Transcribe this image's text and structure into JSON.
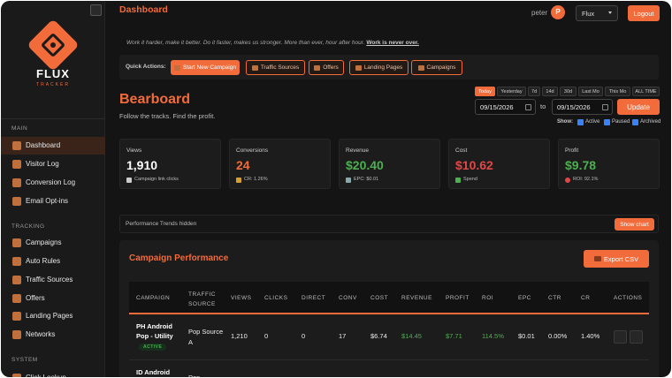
{
  "sidebar": {
    "brand": "FLUX",
    "brand_sub": "TRACKER",
    "sections": [
      {
        "title": "MAIN",
        "items": [
          "Dashboard",
          "Visitor Log",
          "Conversion Log",
          "Email Opt-ins"
        ]
      },
      {
        "title": "TRACKING",
        "items": [
          "Campaigns",
          "Auto Rules",
          "Traffic Sources",
          "Offers",
          "Landing Pages",
          "Networks"
        ]
      },
      {
        "title": "SYSTEM",
        "items": [
          "Click Lookup"
        ]
      }
    ]
  },
  "header": {
    "title": "Dashboard",
    "user": "peter",
    "avatar": "P",
    "workspace": "Flux",
    "logout": "Logout"
  },
  "motto": {
    "text": "Work it harder, make it better. Do it faster, makes us stronger. More than ever, hour after hour.",
    "emphasis": "Work is never over."
  },
  "quick_actions": {
    "label": "Quick Actions:",
    "buttons": [
      "Start New Campaign",
      "Traffic Sources",
      "Offers",
      "Landing Pages",
      "Campaigns"
    ]
  },
  "page": {
    "title": "Bearboard",
    "subtitle": "Follow the tracks. Find the profit."
  },
  "date_filter": {
    "ranges": [
      "Today",
      "Yesterday",
      "7d",
      "14d",
      "30d",
      "Last Mo",
      "This Mo",
      "ALL TIME"
    ],
    "from": "09/15/2026",
    "to_label": "to",
    "to": "09/15/2026",
    "update": "Update",
    "show_label": "Show:",
    "toggles": [
      "Active",
      "Paused",
      "Archived"
    ]
  },
  "stats": [
    {
      "label": "Views",
      "value": "1,910",
      "note": "Campaign link clicks"
    },
    {
      "label": "Conversions",
      "value": "24",
      "note": "CR: 1.26%"
    },
    {
      "label": "Revenue",
      "value": "$20.40",
      "note": "EPC: $0.01"
    },
    {
      "label": "Cost",
      "value": "$10.62",
      "note": "Spend"
    },
    {
      "label": "Profit",
      "value": "$9.78",
      "note": "ROI: 92.1%"
    }
  ],
  "trends": {
    "text": "Performance Trends hidden",
    "button": "Show chart"
  },
  "campaigns": {
    "title": "Campaign Performance",
    "export": "Export CSV",
    "columns": [
      "CAMPAIGN",
      "TRAFFIC SOURCE",
      "VIEWS",
      "CLICKS",
      "DIRECT",
      "CONV",
      "COST",
      "REVENUE",
      "PROFIT",
      "ROI",
      "EPC",
      "CTR",
      "CR",
      "ACTIONS"
    ],
    "rows": [
      {
        "name": "PH Android Pop - Utility",
        "status": "ACTIVE",
        "cells": [
          "Pop Source A",
          "1,210",
          "0",
          "0",
          "17",
          "$6.74",
          "$14.45",
          "$7.71",
          "114.5%",
          "$0.01",
          "0.00%",
          "1.40%"
        ]
      },
      {
        "name": "ID Android",
        "cells": [
          "Pop"
        ]
      }
    ]
  }
}
